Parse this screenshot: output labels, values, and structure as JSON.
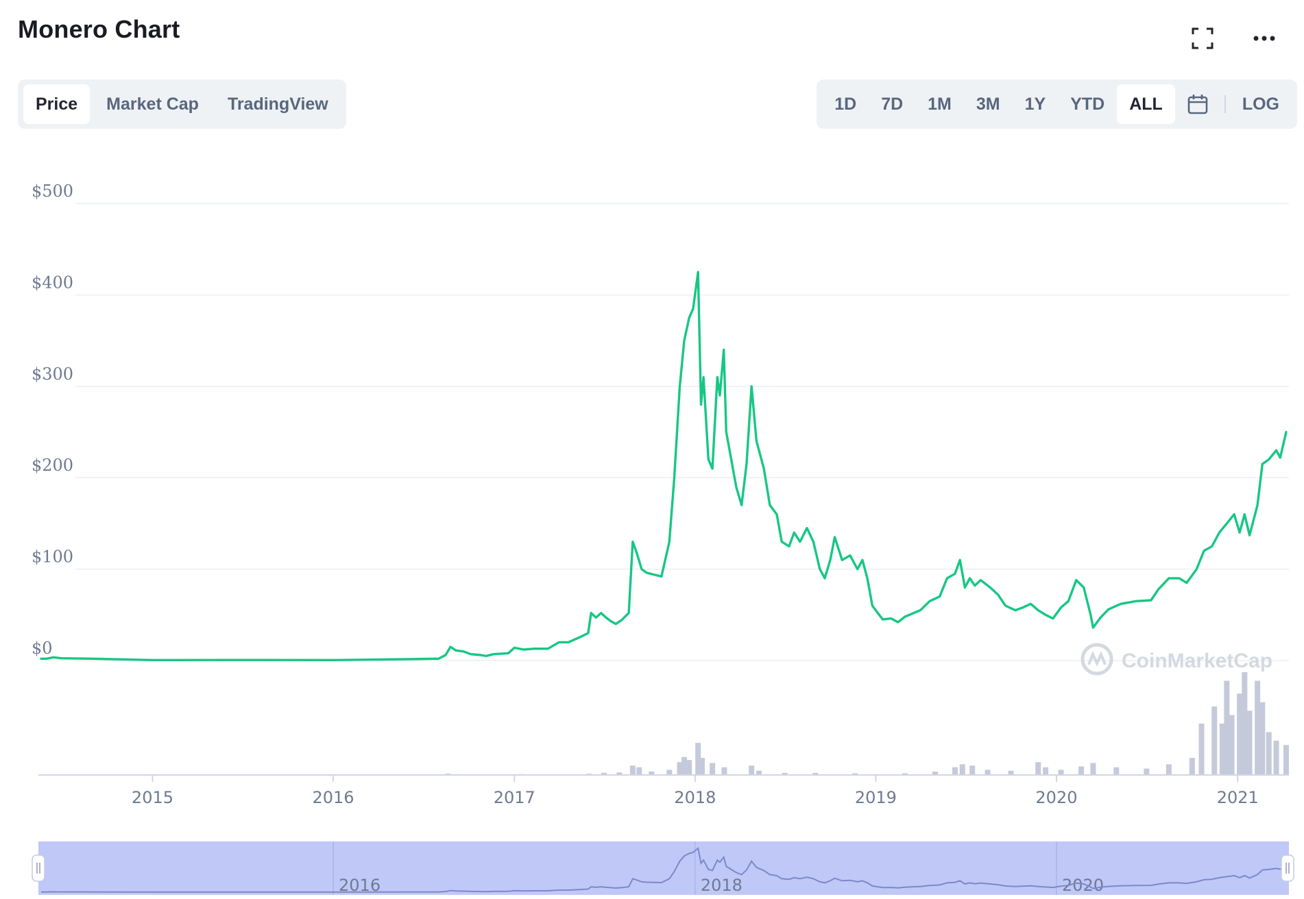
{
  "header": {
    "title": "Monero Chart",
    "expand_icon": "expand-icon",
    "more_icon": "more-dots-icon"
  },
  "tabs": [
    {
      "label": "Price",
      "active": true
    },
    {
      "label": "Market Cap",
      "active": false
    },
    {
      "label": "TradingView",
      "active": false
    }
  ],
  "ranges": [
    {
      "label": "1D",
      "active": false
    },
    {
      "label": "7D",
      "active": false
    },
    {
      "label": "1M",
      "active": false
    },
    {
      "label": "3M",
      "active": false
    },
    {
      "label": "1Y",
      "active": false
    },
    {
      "label": "YTD",
      "active": false
    },
    {
      "label": "ALL",
      "active": true
    }
  ],
  "calendar_icon": "calendar-icon",
  "log_label": "LOG",
  "watermark": "CoinMarketCap",
  "colors": {
    "line": "#16c784",
    "volume": "#c5cadb",
    "navigator": "#c0c8f8",
    "grid": "#eceff3"
  },
  "chart_data": {
    "type": "line",
    "title": "",
    "xlabel": "",
    "ylabel": "",
    "y_ticks": [
      "$0",
      "$100",
      "$200",
      "$300",
      "$400",
      "$500"
    ],
    "ylim": [
      0,
      500
    ],
    "x_ticks": [
      "2015",
      "2016",
      "2017",
      "2018",
      "2019",
      "2020",
      "2021"
    ],
    "xlim": [
      "2014-05-21",
      "2021-04-09"
    ],
    "grid": true,
    "legend": "none",
    "navigator_ticks": [
      "2016",
      "2018",
      "2020"
    ],
    "series": [
      {
        "values": [
          [
            "2014-05-21",
            2
          ],
          [
            "2014-06-01",
            2
          ],
          [
            "2014-06-15",
            3.5
          ],
          [
            "2014-07-01",
            2.5
          ],
          [
            "2014-09-01",
            2
          ],
          [
            "2015-01-01",
            0.5
          ],
          [
            "2015-06-01",
            0.6
          ],
          [
            "2016-01-01",
            0.5
          ],
          [
            "2016-06-01",
            1.5
          ],
          [
            "2016-08-01",
            2
          ],
          [
            "2016-08-15",
            6
          ],
          [
            "2016-08-25",
            15
          ],
          [
            "2016-09-05",
            11
          ],
          [
            "2016-09-20",
            10
          ],
          [
            "2016-10-05",
            7
          ],
          [
            "2016-10-25",
            6
          ],
          [
            "2016-11-05",
            5
          ],
          [
            "2016-11-20",
            7
          ],
          [
            "2016-12-20",
            8
          ],
          [
            "2017-01-01",
            14
          ],
          [
            "2017-01-20",
            12
          ],
          [
            "2017-02-10",
            13
          ],
          [
            "2017-03-10",
            13
          ],
          [
            "2017-04-01",
            20
          ],
          [
            "2017-04-20",
            20
          ],
          [
            "2017-05-15",
            26
          ],
          [
            "2017-05-30",
            30
          ],
          [
            "2017-06-05",
            52
          ],
          [
            "2017-06-15",
            47
          ],
          [
            "2017-06-25",
            52
          ],
          [
            "2017-07-05",
            47
          ],
          [
            "2017-07-15",
            43
          ],
          [
            "2017-07-25",
            40
          ],
          [
            "2017-08-05",
            44
          ],
          [
            "2017-08-20",
            52
          ],
          [
            "2017-08-28",
            130
          ],
          [
            "2017-09-05",
            118
          ],
          [
            "2017-09-15",
            100
          ],
          [
            "2017-09-25",
            96
          ],
          [
            "2017-10-10",
            94
          ],
          [
            "2017-10-25",
            92
          ],
          [
            "2017-11-10",
            130
          ],
          [
            "2017-11-20",
            200
          ],
          [
            "2017-12-01",
            300
          ],
          [
            "2017-12-10",
            350
          ],
          [
            "2017-12-20",
            375
          ],
          [
            "2017-12-28",
            385
          ],
          [
            "2018-01-07",
            425
          ],
          [
            "2018-01-13",
            280
          ],
          [
            "2018-01-18",
            310
          ],
          [
            "2018-01-28",
            220
          ],
          [
            "2018-02-05",
            210
          ],
          [
            "2018-02-15",
            310
          ],
          [
            "2018-02-20",
            290
          ],
          [
            "2018-02-28",
            340
          ],
          [
            "2018-03-05",
            250
          ],
          [
            "2018-03-15",
            220
          ],
          [
            "2018-03-25",
            190
          ],
          [
            "2018-04-05",
            170
          ],
          [
            "2018-04-15",
            215
          ],
          [
            "2018-04-25",
            300
          ],
          [
            "2018-05-05",
            240
          ],
          [
            "2018-05-20",
            210
          ],
          [
            "2018-06-01",
            170
          ],
          [
            "2018-06-15",
            160
          ],
          [
            "2018-06-25",
            130
          ],
          [
            "2018-07-10",
            125
          ],
          [
            "2018-07-20",
            140
          ],
          [
            "2018-08-01",
            130
          ],
          [
            "2018-08-15",
            145
          ],
          [
            "2018-08-28",
            130
          ],
          [
            "2018-09-10",
            100
          ],
          [
            "2018-09-20",
            90
          ],
          [
            "2018-10-01",
            110
          ],
          [
            "2018-10-10",
            135
          ],
          [
            "2018-10-25",
            110
          ],
          [
            "2018-11-10",
            115
          ],
          [
            "2018-11-25",
            100
          ],
          [
            "2018-12-05",
            110
          ],
          [
            "2018-12-15",
            90
          ],
          [
            "2018-12-25",
            60
          ],
          [
            "2019-01-15",
            45
          ],
          [
            "2019-02-01",
            46
          ],
          [
            "2019-02-15",
            42
          ],
          [
            "2019-03-01",
            48
          ],
          [
            "2019-04-01",
            55
          ],
          [
            "2019-04-20",
            65
          ],
          [
            "2019-05-10",
            70
          ],
          [
            "2019-05-25",
            90
          ],
          [
            "2019-06-10",
            95
          ],
          [
            "2019-06-20",
            110
          ],
          [
            "2019-06-30",
            80
          ],
          [
            "2019-07-10",
            90
          ],
          [
            "2019-07-20",
            82
          ],
          [
            "2019-08-01",
            88
          ],
          [
            "2019-08-20",
            80
          ],
          [
            "2019-09-05",
            72
          ],
          [
            "2019-09-20",
            60
          ],
          [
            "2019-10-10",
            55
          ],
          [
            "2019-10-25",
            58
          ],
          [
            "2019-11-10",
            62
          ],
          [
            "2019-11-25",
            55
          ],
          [
            "2019-12-10",
            50
          ],
          [
            "2019-12-25",
            46
          ],
          [
            "2020-01-10",
            58
          ],
          [
            "2020-01-25",
            65
          ],
          [
            "2020-02-10",
            88
          ],
          [
            "2020-02-25",
            80
          ],
          [
            "2020-03-10",
            50
          ],
          [
            "2020-03-15",
            36
          ],
          [
            "2020-03-30",
            47
          ],
          [
            "2020-04-15",
            56
          ],
          [
            "2020-05-10",
            62
          ],
          [
            "2020-06-10",
            65
          ],
          [
            "2020-07-10",
            66
          ],
          [
            "2020-07-25",
            78
          ],
          [
            "2020-08-15",
            90
          ],
          [
            "2020-09-05",
            90
          ],
          [
            "2020-09-20",
            85
          ],
          [
            "2020-10-10",
            100
          ],
          [
            "2020-10-25",
            120
          ],
          [
            "2020-11-10",
            125
          ],
          [
            "2020-11-25",
            140
          ],
          [
            "2020-12-10",
            150
          ],
          [
            "2020-12-25",
            160
          ],
          [
            "2021-01-05",
            140
          ],
          [
            "2021-01-15",
            160
          ],
          [
            "2021-01-25",
            137
          ],
          [
            "2021-02-10",
            170
          ],
          [
            "2021-02-20",
            215
          ],
          [
            "2021-03-05",
            220
          ],
          [
            "2021-03-20",
            230
          ],
          [
            "2021-03-28",
            222
          ],
          [
            "2021-04-09",
            250
          ]
        ]
      }
    ],
    "volume_series": [
      [
        "2016-08-20",
        0.03
      ],
      [
        "2016-09-10",
        0.02
      ],
      [
        "2016-12-01",
        0.01
      ],
      [
        "2017-01-15",
        0.02
      ],
      [
        "2017-04-01",
        0.01
      ],
      [
        "2017-06-01",
        0.03
      ],
      [
        "2017-07-01",
        0.05
      ],
      [
        "2017-08-01",
        0.06
      ],
      [
        "2017-08-28",
        0.22
      ],
      [
        "2017-09-10",
        0.18
      ],
      [
        "2017-10-05",
        0.08
      ],
      [
        "2017-11-10",
        0.12
      ],
      [
        "2017-12-01",
        0.3
      ],
      [
        "2017-12-10",
        0.42
      ],
      [
        "2017-12-20",
        0.35
      ],
      [
        "2018-01-07",
        0.75
      ],
      [
        "2018-01-15",
        0.4
      ],
      [
        "2018-02-05",
        0.28
      ],
      [
        "2018-03-01",
        0.18
      ],
      [
        "2018-04-25",
        0.22
      ],
      [
        "2018-05-10",
        0.1
      ],
      [
        "2018-07-01",
        0.05
      ],
      [
        "2018-09-01",
        0.05
      ],
      [
        "2018-11-20",
        0.04
      ],
      [
        "2019-03-01",
        0.04
      ],
      [
        "2019-05-01",
        0.08
      ],
      [
        "2019-06-10",
        0.18
      ],
      [
        "2019-06-25",
        0.25
      ],
      [
        "2019-07-15",
        0.22
      ],
      [
        "2019-08-15",
        0.12
      ],
      [
        "2019-10-01",
        0.1
      ],
      [
        "2019-11-25",
        0.3
      ],
      [
        "2019-12-10",
        0.18
      ],
      [
        "2020-01-10",
        0.12
      ],
      [
        "2020-02-20",
        0.2
      ],
      [
        "2020-03-15",
        0.28
      ],
      [
        "2020-05-01",
        0.18
      ],
      [
        "2020-07-01",
        0.15
      ],
      [
        "2020-08-15",
        0.25
      ],
      [
        "2020-10-01",
        0.4
      ],
      [
        "2020-10-20",
        1.2
      ],
      [
        "2020-11-15",
        1.6
      ],
      [
        "2020-12-01",
        1.2
      ],
      [
        "2020-12-10",
        2.2
      ],
      [
        "2020-12-20",
        1.4
      ],
      [
        "2021-01-05",
        1.9
      ],
      [
        "2021-01-15",
        2.4
      ],
      [
        "2021-01-25",
        1.5
      ],
      [
        "2021-02-10",
        2.2
      ],
      [
        "2021-02-20",
        1.7
      ],
      [
        "2021-03-05",
        1.0
      ],
      [
        "2021-03-20",
        0.8
      ],
      [
        "2021-04-09",
        0.7
      ]
    ]
  }
}
